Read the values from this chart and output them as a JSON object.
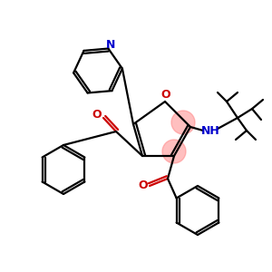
{
  "bg_color": "#ffffff",
  "atom_colors": {
    "C": "#000000",
    "N": "#0000cd",
    "O": "#cc0000",
    "H": "#000000"
  },
  "highlight_color": "#ff8080",
  "highlight_alpha": 0.5,
  "lw": 1.6
}
